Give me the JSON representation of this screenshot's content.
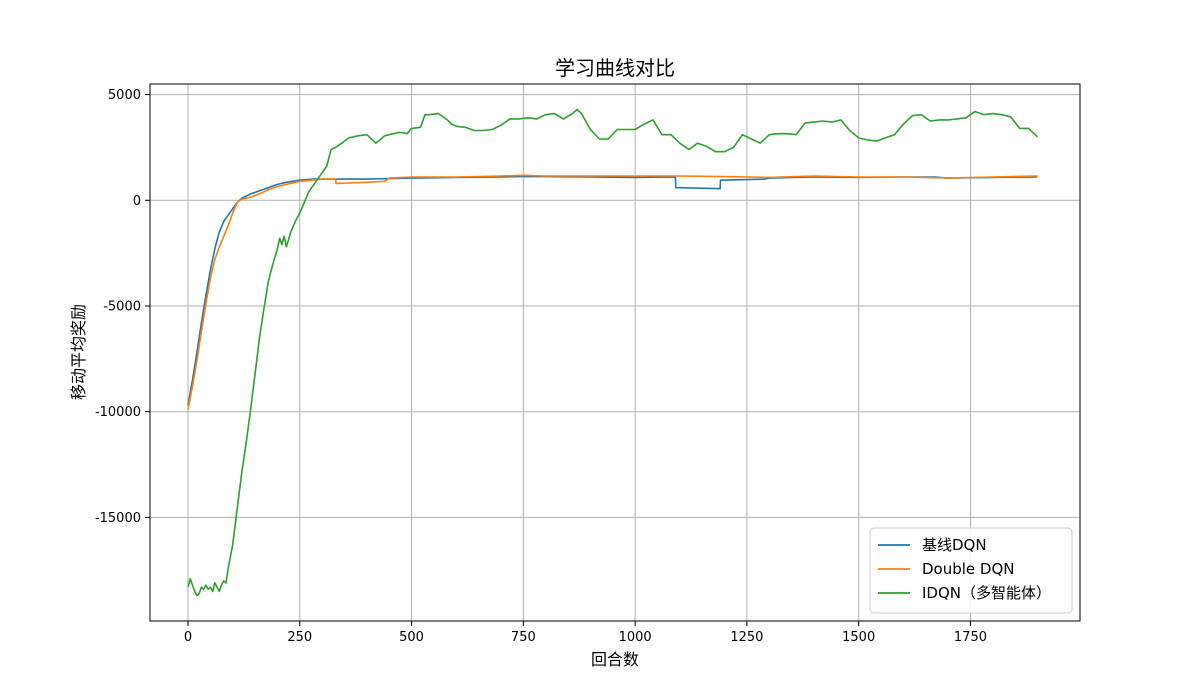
{
  "chart_data": {
    "type": "line",
    "title": "学习曲线对比",
    "xlabel": "回合数",
    "ylabel": "移动平均奖励",
    "xlim": [
      -85,
      1995
    ],
    "ylim": [
      -19900,
      5500
    ],
    "xticks": [
      0,
      250,
      500,
      750,
      1000,
      1250,
      1500,
      1750
    ],
    "yticks": [
      -15000,
      -10000,
      -5000,
      0,
      5000
    ],
    "grid": true,
    "legend_position": "lower-right",
    "series": [
      {
        "name": "基线DQN",
        "color": "#1f77b4",
        "x": [
          0,
          10,
          20,
          30,
          40,
          50,
          60,
          70,
          80,
          90,
          100,
          110,
          120,
          130,
          140,
          160,
          180,
          200,
          220,
          250,
          280,
          330,
          400,
          500,
          600,
          700,
          750,
          800,
          900,
          1000,
          1090,
          1091,
          1190,
          1191,
          1290,
          1300,
          1400,
          1500,
          1600,
          1670,
          1700,
          1800,
          1900
        ],
        "values": [
          -9700,
          -8500,
          -7200,
          -5800,
          -4500,
          -3300,
          -2300,
          -1500,
          -1000,
          -700,
          -400,
          -100,
          100,
          200,
          300,
          450,
          600,
          750,
          850,
          950,
          1000,
          1000,
          1000,
          1050,
          1080,
          1100,
          1130,
          1120,
          1100,
          1080,
          1100,
          600,
          550,
          950,
          1000,
          1050,
          1100,
          1080,
          1100,
          1100,
          1050,
          1080,
          1100
        ]
      },
      {
        "name": "Double DQN",
        "color": "#ff7f0e",
        "x": [
          0,
          10,
          20,
          30,
          40,
          50,
          60,
          70,
          80,
          90,
          100,
          110,
          120,
          140,
          160,
          180,
          200,
          250,
          300,
          330,
          331,
          400,
          440,
          450,
          500,
          600,
          700,
          750,
          800,
          900,
          1000,
          1100,
          1200,
          1300,
          1400,
          1500,
          1600,
          1700,
          1800,
          1900
        ],
        "values": [
          -9900,
          -8800,
          -7600,
          -6200,
          -4900,
          -3700,
          -2800,
          -2200,
          -1700,
          -1200,
          -600,
          -100,
          50,
          150,
          300,
          500,
          650,
          900,
          1000,
          1000,
          800,
          850,
          900,
          1050,
          1100,
          1100,
          1150,
          1180,
          1150,
          1150,
          1150,
          1150,
          1120,
          1080,
          1150,
          1100,
          1100,
          1050,
          1100,
          1150
        ]
      },
      {
        "name": "IDQN（多智能体）",
        "color": "#2ca02c",
        "x": [
          0,
          5,
          10,
          15,
          20,
          25,
          30,
          35,
          40,
          45,
          50,
          55,
          60,
          65,
          70,
          75,
          80,
          85,
          90,
          100,
          110,
          120,
          130,
          140,
          150,
          160,
          170,
          180,
          190,
          200,
          205,
          210,
          215,
          220,
          230,
          240,
          250,
          260,
          270,
          280,
          290,
          300,
          310,
          320,
          330,
          340,
          350,
          360,
          380,
          400,
          420,
          440,
          450,
          460,
          470,
          480,
          490,
          500,
          520,
          530,
          540,
          560,
          580,
          590,
          600,
          620,
          640,
          660,
          680,
          700,
          720,
          740,
          760,
          780,
          800,
          820,
          840,
          860,
          870,
          880,
          900,
          920,
          940,
          960,
          980,
          1000,
          1020,
          1040,
          1060,
          1080,
          1100,
          1120,
          1140,
          1160,
          1180,
          1200,
          1220,
          1240,
          1260,
          1280,
          1300,
          1320,
          1340,
          1360,
          1380,
          1400,
          1420,
          1440,
          1460,
          1480,
          1500,
          1520,
          1540,
          1560,
          1580,
          1600,
          1620,
          1640,
          1660,
          1680,
          1700,
          1720,
          1740,
          1760,
          1780,
          1800,
          1820,
          1840,
          1860,
          1880,
          1900
        ],
        "values": [
          -18300,
          -17900,
          -18200,
          -18500,
          -18700,
          -18600,
          -18300,
          -18400,
          -18200,
          -18400,
          -18300,
          -18500,
          -18100,
          -18300,
          -18500,
          -18200,
          -18000,
          -18100,
          -17400,
          -16300,
          -14600,
          -12900,
          -11500,
          -9900,
          -8200,
          -6500,
          -5100,
          -3800,
          -3000,
          -2300,
          -1800,
          -2100,
          -1700,
          -2200,
          -1500,
          -1000,
          -600,
          -100,
          400,
          700,
          1000,
          1300,
          1600,
          2400,
          2500,
          2650,
          2800,
          2950,
          3050,
          3100,
          2700,
          3050,
          3100,
          3150,
          3200,
          3200,
          3150,
          3400,
          3450,
          4050,
          4050,
          4100,
          3800,
          3600,
          3500,
          3450,
          3300,
          3300,
          3350,
          3550,
          3850,
          3850,
          3900,
          3850,
          4050,
          4100,
          3850,
          4100,
          4300,
          4100,
          3350,
          2900,
          2900,
          3350,
          3350,
          3350,
          3600,
          3800,
          3100,
          3100,
          2700,
          2400,
          2700,
          2550,
          2300,
          2300,
          2500,
          3100,
          2900,
          2700,
          3100,
          3150,
          3150,
          3100,
          3650,
          3700,
          3750,
          3700,
          3800,
          3300,
          2950,
          2850,
          2800,
          2950,
          3100,
          3600,
          4000,
          4050,
          3750,
          3800,
          3800,
          3850,
          3900,
          4200,
          4050,
          4100,
          4050,
          3950,
          3400,
          3400,
          3000
        ]
      }
    ]
  }
}
